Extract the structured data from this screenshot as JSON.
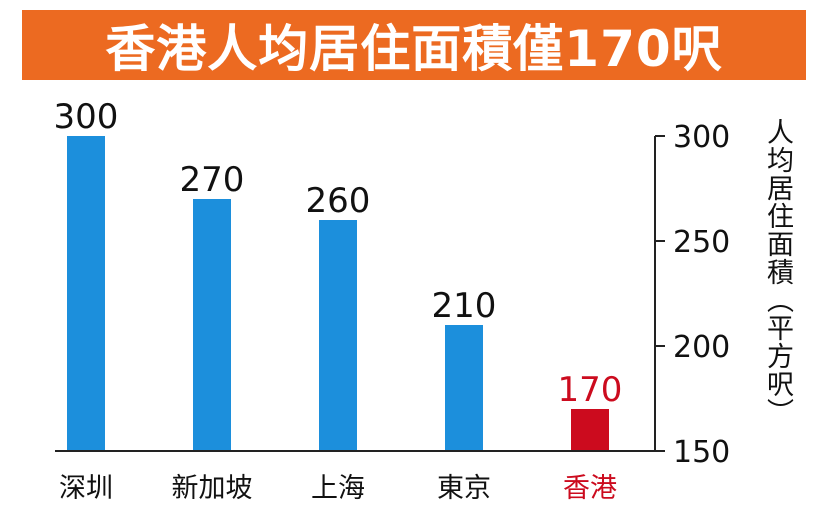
{
  "title": "香港人均居住面積僅170呎",
  "colors": {
    "title_bg": "#ec6a21",
    "bar": "#1c8fdc",
    "highlight_bar": "#cc0b1e",
    "highlight_text": "#cc0b1e",
    "text": "#111111"
  },
  "chart_data": {
    "type": "bar",
    "categories": [
      "深圳",
      "新加坡",
      "上海",
      "東京",
      "香港"
    ],
    "values": [
      300,
      270,
      260,
      210,
      170
    ],
    "value_labels": [
      "300",
      "270",
      "260",
      "210",
      "170"
    ],
    "highlight_index": 4,
    "title": "香港人均居住面積僅170呎",
    "ylabel": "人均居住面積（平方呎）",
    "ylim": [
      150,
      300
    ],
    "yticks": [
      150,
      200,
      250,
      300
    ],
    "y_axis_side": "right",
    "grid": false,
    "legend": "none"
  }
}
